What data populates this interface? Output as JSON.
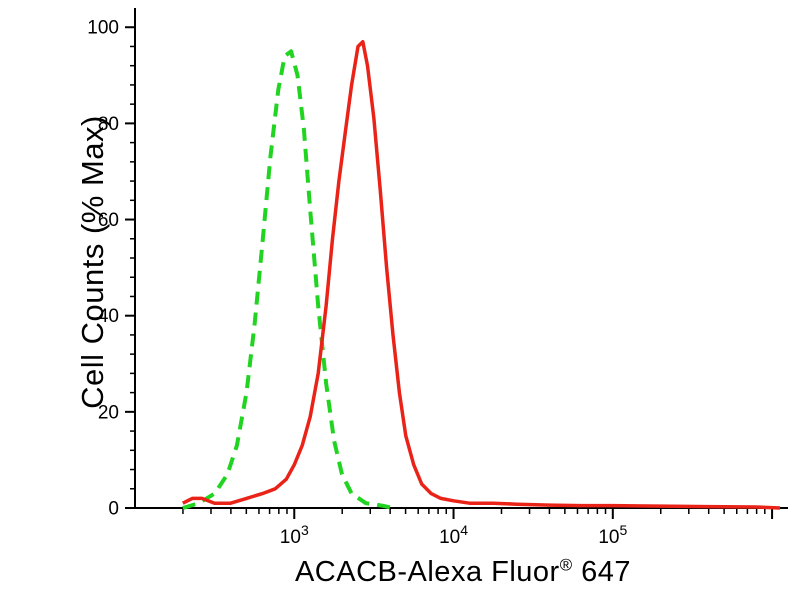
{
  "figure": {
    "background": "#ffffff",
    "ylabel": "Cell Counts (% Max)",
    "xlabel": {
      "main": "ACACB-Alexa Fluor",
      "sup": "®",
      "suffix": " 647"
    }
  },
  "chart_data": {
    "type": "line",
    "subtype": "flow-cytometry-histogram",
    "title": "",
    "xlabel": "ACACB-Alexa Fluor® 647",
    "ylabel": "Cell Counts (% Max)",
    "x_scale": "log10",
    "xlim_log10": [
      2.0,
      6.1
    ],
    "ylim": [
      0,
      104
    ],
    "grid": false,
    "legend": null,
    "axis_color": "#000000",
    "y_major_ticks": [
      0,
      20,
      40,
      60,
      80,
      100
    ],
    "y_minor_step": 4,
    "x_tick_labels": [
      {
        "log10": 3,
        "base": "10",
        "exp": "3"
      },
      {
        "log10": 4,
        "base": "10",
        "exp": "4"
      },
      {
        "log10": 5,
        "base": "10",
        "exp": "5"
      }
    ],
    "series": [
      {
        "name": "green-dashed",
        "color": "#21d421",
        "style": "dashed",
        "peak_log10x": 2.98,
        "peak_y": 95,
        "points_log10x_y": [
          [
            2.3,
            0
          ],
          [
            2.4,
            1
          ],
          [
            2.5,
            3
          ],
          [
            2.58,
            7
          ],
          [
            2.64,
            13
          ],
          [
            2.7,
            24
          ],
          [
            2.75,
            38
          ],
          [
            2.8,
            55
          ],
          [
            2.85,
            73
          ],
          [
            2.9,
            87
          ],
          [
            2.94,
            94
          ],
          [
            2.98,
            95
          ],
          [
            3.02,
            90
          ],
          [
            3.06,
            79
          ],
          [
            3.1,
            62
          ],
          [
            3.15,
            42
          ],
          [
            3.2,
            26
          ],
          [
            3.25,
            14
          ],
          [
            3.3,
            7
          ],
          [
            3.36,
            3
          ],
          [
            3.45,
            1
          ],
          [
            3.55,
            0.5
          ],
          [
            3.62,
            0
          ]
        ]
      },
      {
        "name": "red-solid",
        "color": "#ea2318",
        "style": "solid",
        "peak_log10x": 3.43,
        "peak_y": 97,
        "points_log10x_y": [
          [
            2.3,
            1
          ],
          [
            2.36,
            2
          ],
          [
            2.42,
            2
          ],
          [
            2.5,
            1
          ],
          [
            2.6,
            1
          ],
          [
            2.7,
            2
          ],
          [
            2.8,
            3
          ],
          [
            2.88,
            4
          ],
          [
            2.95,
            6
          ],
          [
            3.0,
            9
          ],
          [
            3.05,
            13
          ],
          [
            3.1,
            19
          ],
          [
            3.15,
            28
          ],
          [
            3.2,
            42
          ],
          [
            3.24,
            56
          ],
          [
            3.28,
            68
          ],
          [
            3.32,
            78
          ],
          [
            3.36,
            88
          ],
          [
            3.4,
            96
          ],
          [
            3.43,
            97
          ],
          [
            3.46,
            92
          ],
          [
            3.5,
            81
          ],
          [
            3.54,
            66
          ],
          [
            3.58,
            50
          ],
          [
            3.62,
            36
          ],
          [
            3.66,
            24
          ],
          [
            3.7,
            15
          ],
          [
            3.75,
            9
          ],
          [
            3.8,
            5
          ],
          [
            3.86,
            3
          ],
          [
            3.92,
            2
          ],
          [
            4.0,
            1.5
          ],
          [
            4.1,
            1
          ],
          [
            4.25,
            1
          ],
          [
            4.4,
            0.8
          ],
          [
            4.6,
            0.6
          ],
          [
            4.8,
            0.5
          ],
          [
            5.0,
            0.5
          ],
          [
            5.3,
            0.4
          ],
          [
            5.6,
            0.3
          ],
          [
            5.9,
            0.2
          ],
          [
            6.05,
            0
          ]
        ]
      }
    ]
  }
}
